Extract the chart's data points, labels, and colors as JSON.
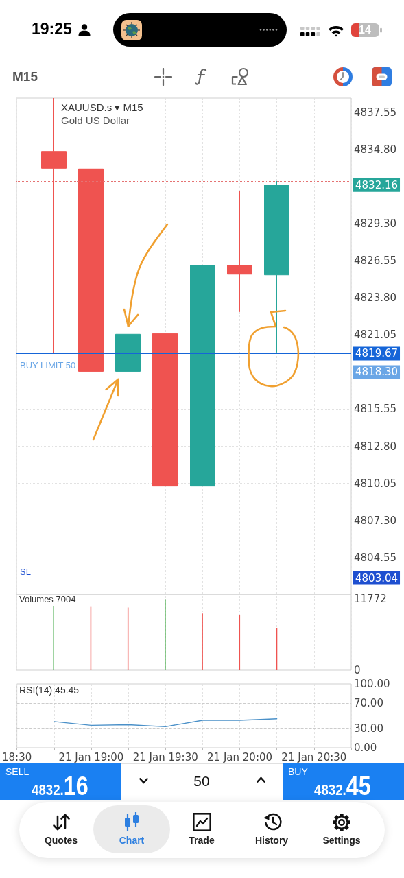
{
  "chart_data": [
    {
      "type": "other",
      "annotations": [
        "19:25",
        "14",
        "M15"
      ]
    },
    {
      "type": "candlestick",
      "title": "XAUUSD.s ▾ M15",
      "subtitle": "Gold US Dollar",
      "categories": [
        null,
        null,
        null,
        null,
        null,
        null,
        null,
        null,
        null,
        null
      ],
      "ohlc": [
        null,
        [
          4834.65,
          4838.6,
          4819.7,
          4833.4
        ],
        [
          4833.35,
          4834.2,
          4815.55,
          4818.35
        ],
        [
          4818.35,
          4826.35,
          4814.6,
          4821.1
        ],
        [
          4821.15,
          4821.6,
          4802.55,
          4809.85
        ],
        [
          4809.85,
          4827.55,
          4808.7,
          4826.2
        ],
        [
          4826.2,
          4831.7,
          4822.75,
          4825.55
        ],
        [
          4825.5,
          4832.45,
          4819.75,
          4832.16
        ],
        null,
        null
      ],
      "colors": [
        null,
        "#ef5350",
        "#ef5350",
        "#26a69a",
        "#ef5350",
        "#26a69a",
        "#ef5350",
        "#26a69a",
        null,
        null
      ],
      "ylim": [
        4801.8,
        4838.6
      ],
      "yticks": [
        {
          "value": 4804.55,
          "label": "4804.55"
        },
        {
          "value": 4807.3,
          "label": "4807.30"
        },
        {
          "value": 4810.05,
          "label": "4810.05"
        },
        {
          "value": 4812.8,
          "label": "4812.80"
        },
        {
          "value": 4815.55,
          "label": "4815.55"
        },
        {
          "value": 4818.3,
          "label": null
        },
        {
          "value": 4821.05,
          "label": "4821.05"
        },
        {
          "value": 4823.8,
          "label": "4823.80"
        },
        {
          "value": 4826.55,
          "label": "4826.55"
        },
        {
          "value": 4829.3,
          "label": "4829.30"
        },
        {
          "value": 4832.05,
          "label": null
        },
        {
          "value": 4834.8,
          "label": "4834.80"
        },
        {
          "value": 4837.55,
          "label": "4837.55"
        }
      ],
      "ref_lines": [
        {
          "axis": "y",
          "value": 4832.45,
          "color": "#e57373",
          "line_style": "dotted"
        },
        {
          "axis": "y",
          "value": 4832.16,
          "label": "4832.16",
          "color": "#26a69a",
          "line_style": "dotted"
        },
        {
          "axis": "y",
          "value": 4819.67,
          "label": "4819.67",
          "color": "#1565d8",
          "line_style": "solid"
        },
        {
          "axis": "y",
          "value": 4818.3,
          "label": "4818.30",
          "color": "#6aa6e6",
          "line_style": "dashed"
        },
        {
          "axis": "y",
          "value": 4803.04,
          "label": "4803.04",
          "color": "#1e4fd0",
          "line_style": "solid"
        }
      ],
      "annotations": [
        {
          "text": "BUY LIMIT 50",
          "y": 4818.3
        },
        {
          "text": "SL",
          "y": 4803.04
        }
      ],
      "grid": true,
      "tick_labels": "y"
    },
    {
      "type": "bar",
      "title": "Volumes 7004",
      "categories": [
        null,
        null,
        null,
        null,
        null,
        null,
        null,
        null,
        null,
        null
      ],
      "values": [
        null,
        10600,
        10500,
        10400,
        11772,
        9400,
        9150,
        7004,
        null,
        null
      ],
      "colors": [
        null,
        "#4caf50",
        "#ef5350",
        "#ef5350",
        "#4caf50",
        "#ef5350",
        "#ef5350",
        "#ef5350",
        null,
        null
      ],
      "ylim": [
        0,
        12500
      ],
      "yticks": [
        0,
        11772
      ],
      "grid": "x",
      "tick_labels": "y"
    },
    {
      "type": "line",
      "title": "RSI(14) 45.45",
      "categories": [
        "18:30",
        null,
        "21 Jan 19:00",
        null,
        "21 Jan 19:30",
        null,
        "21 Jan 20:00",
        null,
        "21 Jan 20:30",
        null
      ],
      "series": [
        {
          "color": "#4a90c8",
          "values": [
            null,
            41,
            35,
            36,
            33,
            43,
            43,
            45.45,
            null,
            null
          ]
        }
      ],
      "ylim": [
        0,
        100
      ],
      "yticks": [
        {
          "value": 0,
          "label": "0.00"
        },
        {
          "value": 30,
          "label": "30.00"
        },
        {
          "value": 70,
          "label": "70.00"
        },
        {
          "value": 100,
          "label": "100.00"
        }
      ],
      "ref_lines": [
        {
          "axis": "y",
          "value": 70,
          "color": "#cccccc",
          "line_style": "dashed"
        },
        {
          "axis": "y",
          "value": 30,
          "color": "#cccccc",
          "line_style": "dashed"
        }
      ],
      "grid": "x"
    },
    {
      "type": "other",
      "annotations": [
        "SELL",
        "4832.16",
        "50",
        "BUY",
        "4832.45",
        "Quotes",
        "Chart",
        "Trade",
        "History",
        "Settings"
      ]
    }
  ]
}
